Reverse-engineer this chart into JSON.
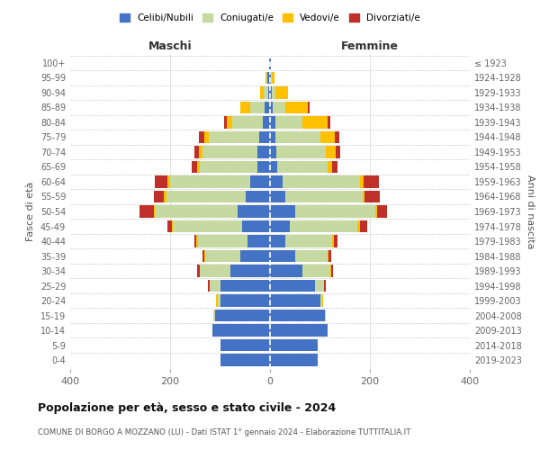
{
  "age_groups": [
    "0-4",
    "5-9",
    "10-14",
    "15-19",
    "20-24",
    "25-29",
    "30-34",
    "35-39",
    "40-44",
    "45-49",
    "50-54",
    "55-59",
    "60-64",
    "65-69",
    "70-74",
    "75-79",
    "80-84",
    "85-89",
    "90-94",
    "95-99",
    "100+"
  ],
  "birth_years": [
    "2019-2023",
    "2014-2018",
    "2009-2013",
    "2004-2008",
    "1999-2003",
    "1994-1998",
    "1989-1993",
    "1984-1988",
    "1979-1983",
    "1974-1978",
    "1969-1973",
    "1964-1968",
    "1959-1963",
    "1954-1958",
    "1949-1953",
    "1944-1948",
    "1939-1943",
    "1934-1938",
    "1929-1933",
    "1924-1928",
    "≤ 1923"
  ],
  "maschi": {
    "celibi": [
      100,
      100,
      115,
      110,
      100,
      100,
      80,
      60,
      45,
      55,
      65,
      48,
      40,
      25,
      25,
      22,
      15,
      10,
      4,
      5,
      2
    ],
    "coniugati": [
      0,
      0,
      0,
      3,
      5,
      20,
      60,
      70,
      100,
      140,
      165,
      160,
      160,
      115,
      110,
      100,
      60,
      30,
      8,
      2,
      0
    ],
    "vedovi": [
      0,
      0,
      0,
      0,
      3,
      1,
      1,
      1,
      2,
      2,
      2,
      4,
      5,
      6,
      8,
      10,
      12,
      20,
      8,
      2,
      0
    ],
    "divorziati": [
      0,
      0,
      0,
      0,
      0,
      3,
      5,
      5,
      5,
      8,
      30,
      20,
      25,
      10,
      8,
      10,
      5,
      0,
      0,
      0,
      0
    ]
  },
  "femmine": {
    "nubili": [
      95,
      95,
      115,
      110,
      100,
      90,
      65,
      50,
      30,
      40,
      50,
      30,
      25,
      15,
      12,
      10,
      10,
      5,
      3,
      2,
      1
    ],
    "coniugate": [
      0,
      0,
      0,
      2,
      5,
      18,
      55,
      65,
      95,
      135,
      160,
      155,
      155,
      100,
      100,
      90,
      55,
      25,
      8,
      2,
      0
    ],
    "vedove": [
      0,
      0,
      0,
      0,
      1,
      1,
      2,
      2,
      3,
      5,
      5,
      5,
      8,
      10,
      20,
      30,
      50,
      45,
      25,
      5,
      0
    ],
    "divorziate": [
      0,
      0,
      0,
      0,
      0,
      3,
      5,
      5,
      8,
      15,
      20,
      30,
      30,
      10,
      8,
      8,
      5,
      5,
      0,
      0,
      0
    ]
  },
  "colors": {
    "celibi": "#4472c4",
    "coniugati": "#c5d9a0",
    "vedovi": "#ffc000",
    "divorziati": "#c0302a"
  },
  "xlim": 400,
  "title": "Popolazione per età, sesso e stato civile - 2024",
  "subtitle": "COMUNE DI BORGO A MOZZANO (LU) - Dati ISTAT 1° gennaio 2024 - Elaborazione TUTTITALIA.IT",
  "ylabel_left": "Fasce di età",
  "ylabel_right": "Anni di nascita",
  "xlabel_left": "Maschi",
  "xlabel_right": "Femmine",
  "bg_color": "#ffffff",
  "grid_color": "#cccccc"
}
